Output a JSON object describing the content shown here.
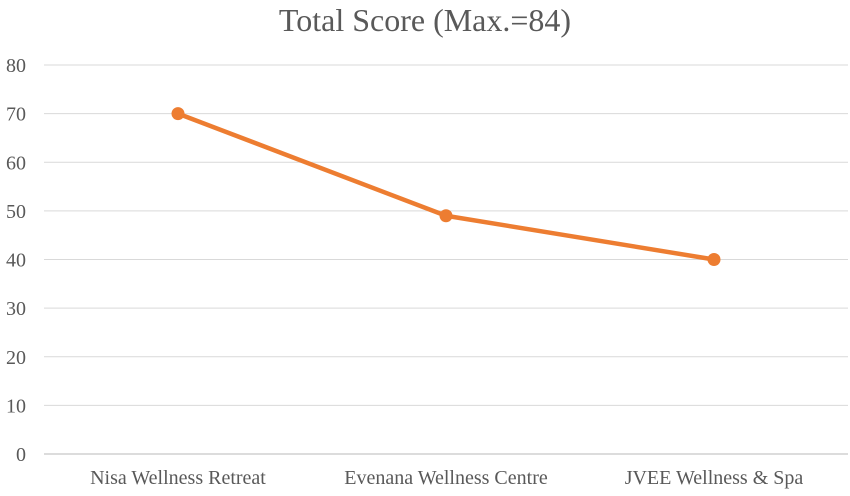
{
  "chart_data": {
    "type": "line",
    "title": "Total Score (Max.=84)",
    "xlabel": "",
    "ylabel": "",
    "categories": [
      "Nisa Wellness Retreat",
      "Evenana Wellness Centre",
      "JVEE Wellness & Spa"
    ],
    "series": [
      {
        "name": "Total Score",
        "values": [
          70,
          49,
          40
        ],
        "color": "#ED7D31"
      }
    ],
    "ylim": [
      0,
      80
    ],
    "yticks": [
      0,
      10,
      20,
      30,
      40,
      50,
      60,
      70,
      80
    ],
    "grid": true,
    "legend": "none"
  }
}
